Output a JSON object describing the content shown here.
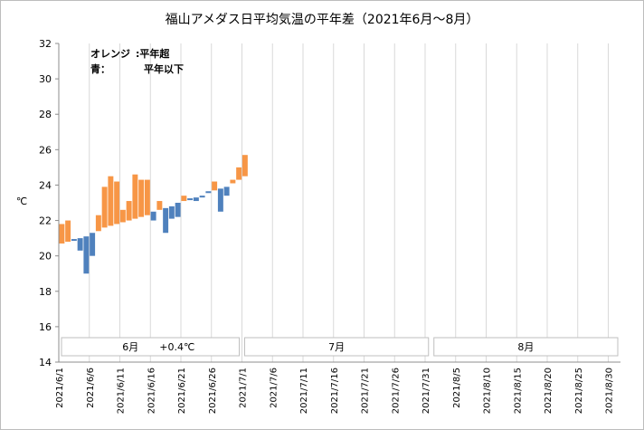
{
  "chart_data": {
    "type": "bar",
    "title": "福山アメダス日平均気温の平年差（2021年6月～8月）",
    "ylabel": "℃",
    "ylim": [
      14,
      32
    ],
    "yticks": [
      14,
      16,
      18,
      20,
      22,
      24,
      26,
      28,
      30,
      32
    ],
    "grid": "vertical",
    "x_start": "2021-06-01",
    "x_end": "2021-08-31",
    "xticks": [
      "2021/6/1",
      "2021/6/6",
      "2021/6/11",
      "2021/6/16",
      "2021/6/21",
      "2021/6/26",
      "2021/7/1",
      "2021/7/6",
      "2021/7/11",
      "2021/7/16",
      "2021/7/21",
      "2021/7/26",
      "2021/7/31",
      "2021/8/5",
      "2021/8/10",
      "2021/8/15",
      "2021/8/20",
      "2021/8/25",
      "2021/8/30"
    ],
    "legend": [
      {
        "label": "オレンジ",
        "suffix": ":平年超",
        "color": "#f0a050"
      },
      {
        "label": "青：",
        "suffix": "平年以下",
        "color": "#4f81bd"
      }
    ],
    "colors": {
      "above": "#f79646",
      "below": "#4f81bd"
    },
    "months": [
      {
        "name": "6月",
        "anomaly": "+0.4℃",
        "anomaly_color": "#e00000"
      },
      {
        "name": "7月",
        "anomaly": ""
      },
      {
        "name": "8月",
        "anomaly": ""
      }
    ],
    "series": [
      {
        "date": "2021-06-01",
        "normal": 20.7,
        "actual": 21.8
      },
      {
        "date": "2021-06-02",
        "normal": 20.8,
        "actual": 22.0
      },
      {
        "date": "2021-06-03",
        "normal": 20.9,
        "actual": 20.9
      },
      {
        "date": "2021-06-04",
        "normal": 21.0,
        "actual": 20.3
      },
      {
        "date": "2021-06-05",
        "normal": 21.1,
        "actual": 19.0
      },
      {
        "date": "2021-06-06",
        "normal": 21.3,
        "actual": 20.0
      },
      {
        "date": "2021-06-07",
        "normal": 21.4,
        "actual": 22.3
      },
      {
        "date": "2021-06-08",
        "normal": 21.6,
        "actual": 23.9
      },
      {
        "date": "2021-06-09",
        "normal": 21.7,
        "actual": 24.5
      },
      {
        "date": "2021-06-10",
        "normal": 21.8,
        "actual": 24.2
      },
      {
        "date": "2021-06-11",
        "normal": 21.9,
        "actual": 22.6
      },
      {
        "date": "2021-06-12",
        "normal": 22.0,
        "actual": 23.1
      },
      {
        "date": "2021-06-13",
        "normal": 22.1,
        "actual": 24.6
      },
      {
        "date": "2021-06-14",
        "normal": 22.2,
        "actual": 24.3
      },
      {
        "date": "2021-06-15",
        "normal": 22.3,
        "actual": 24.3
      },
      {
        "date": "2021-06-16",
        "normal": 22.5,
        "actual": 22.0
      },
      {
        "date": "2021-06-17",
        "normal": 22.6,
        "actual": 23.1
      },
      {
        "date": "2021-06-18",
        "normal": 22.7,
        "actual": 21.3
      },
      {
        "date": "2021-06-19",
        "normal": 22.8,
        "actual": 22.1
      },
      {
        "date": "2021-06-20",
        "normal": 23.0,
        "actual": 22.2
      },
      {
        "date": "2021-06-21",
        "normal": 23.1,
        "actual": 23.4
      },
      {
        "date": "2021-06-22",
        "normal": 23.2,
        "actual": 23.2
      },
      {
        "date": "2021-06-23",
        "normal": 23.3,
        "actual": 23.1
      },
      {
        "date": "2021-06-24",
        "normal": 23.4,
        "actual": 23.3
      },
      {
        "date": "2021-06-25",
        "normal": 23.6,
        "actual": 23.6
      },
      {
        "date": "2021-06-26",
        "normal": 23.7,
        "actual": 24.2
      },
      {
        "date": "2021-06-27",
        "normal": 23.8,
        "actual": 22.5
      },
      {
        "date": "2021-06-28",
        "normal": 23.9,
        "actual": 23.4
      },
      {
        "date": "2021-06-29",
        "normal": 24.1,
        "actual": 24.3
      },
      {
        "date": "2021-06-30",
        "normal": 24.3,
        "actual": 25.0
      },
      {
        "date": "2021-07-01",
        "normal": 24.5,
        "actual": 25.7
      }
    ]
  }
}
